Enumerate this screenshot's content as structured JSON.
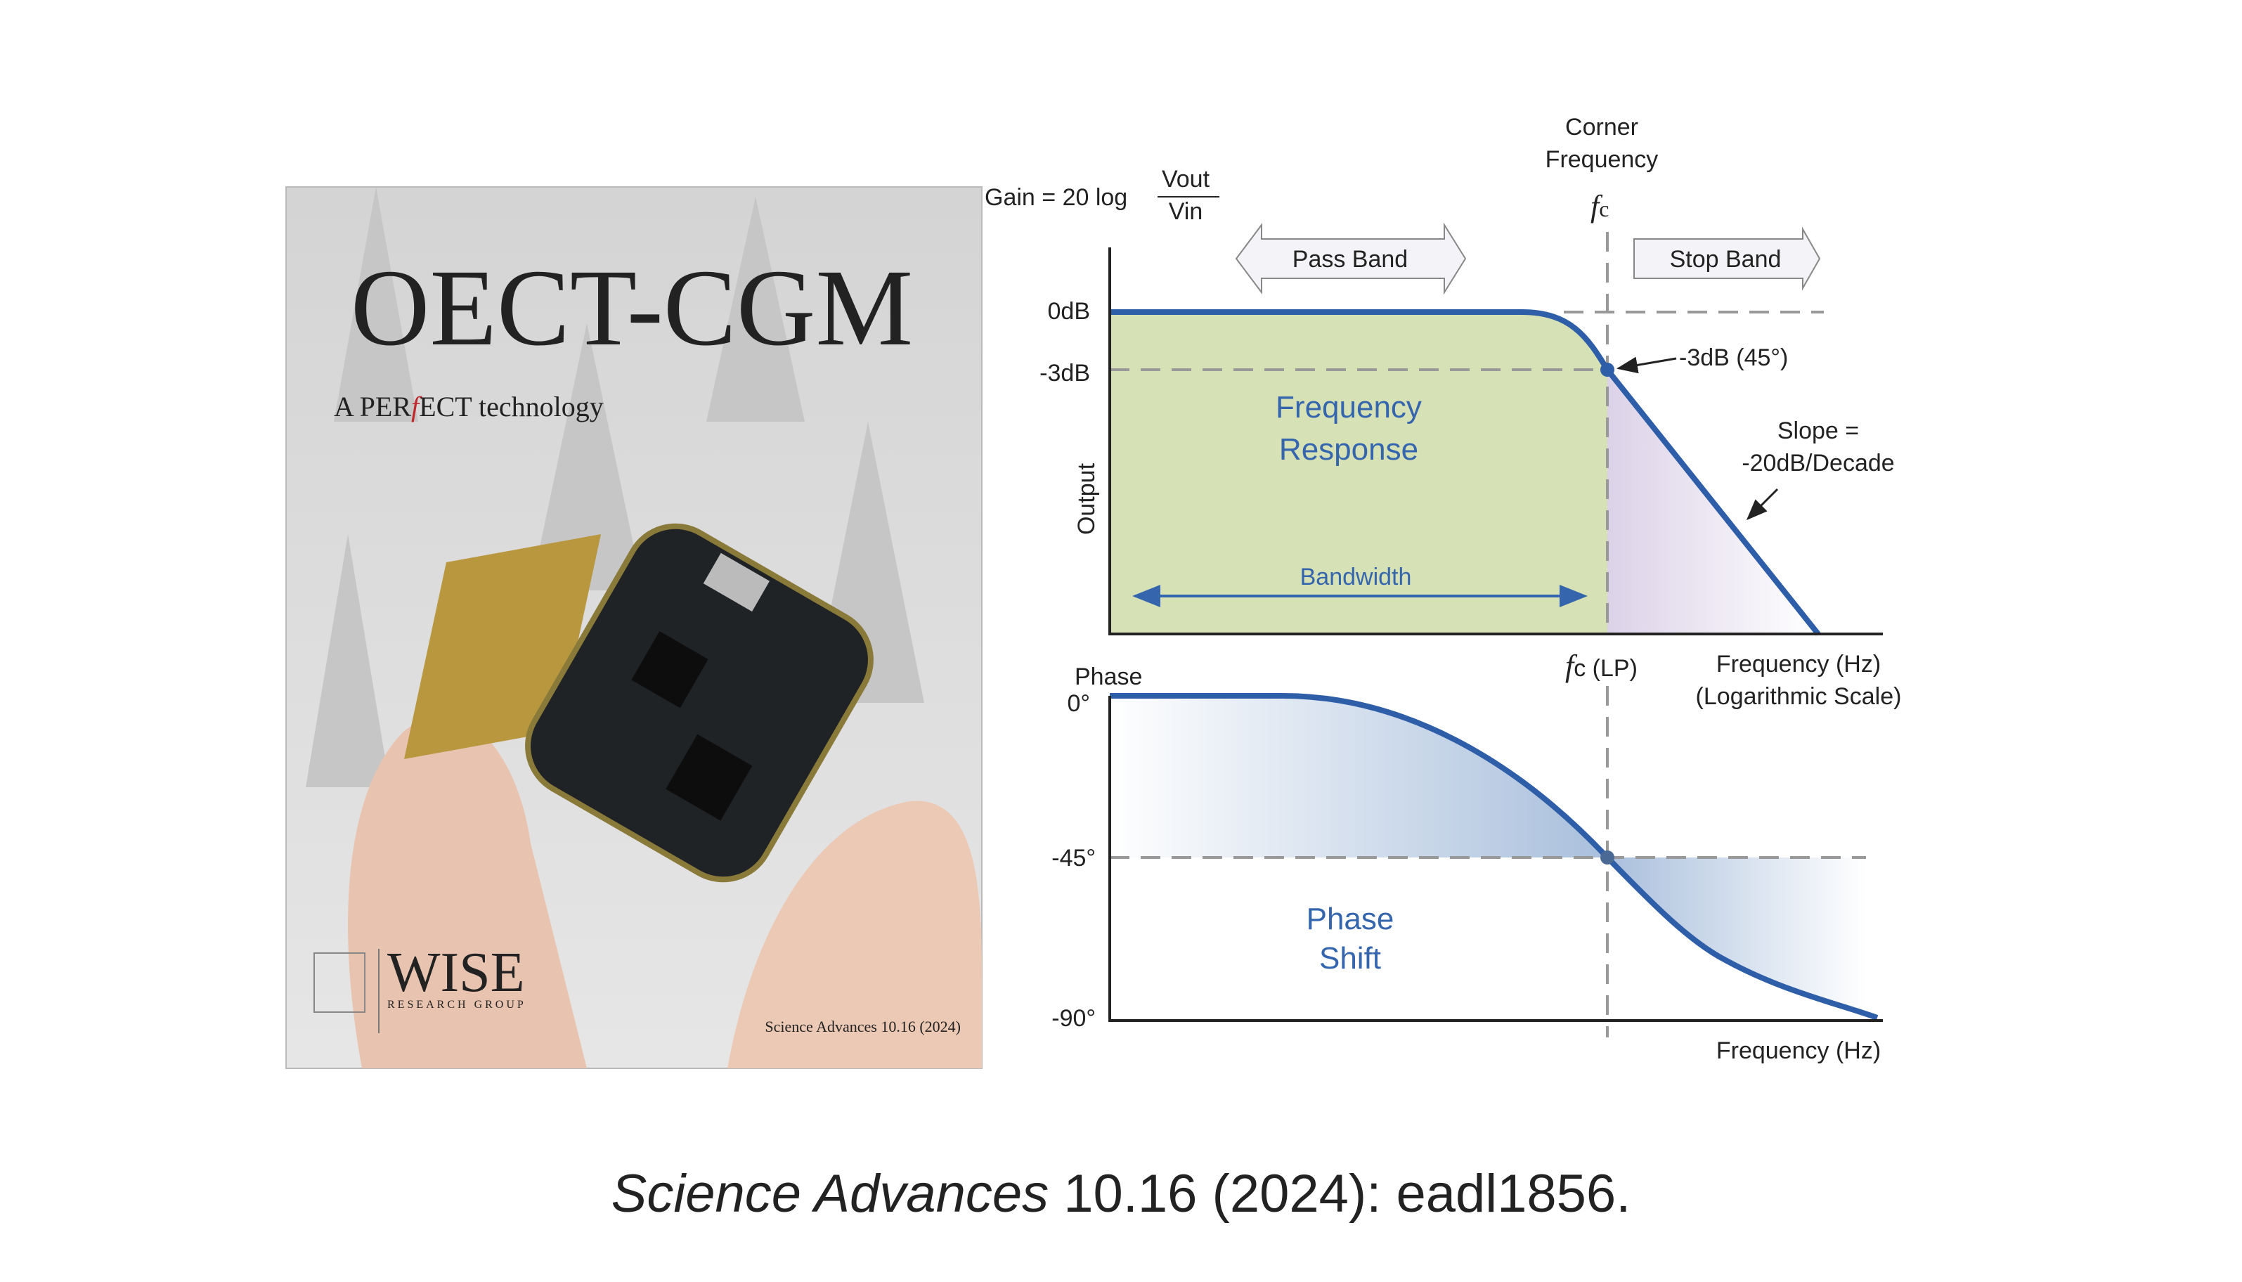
{
  "cover": {
    "title": "OECT-CGM",
    "subtitle_before": "A PER",
    "subtitle_f": "f",
    "subtitle_after": "ECT technology",
    "logo": "WISE",
    "logo_sub": "RESEARCH GROUP",
    "footer": "Science Advances 10.16 (2024)"
  },
  "diagram": {
    "gain_label": "Gain = 20 log",
    "gain_num": "Vout",
    "gain_den": "Vin",
    "corner_lines": [
      "Corner",
      "Frequency"
    ],
    "fc_symbol": "f",
    "fc_sub": "c",
    "pass_band": "Pass Band",
    "stop_band": "Stop Band",
    "zero_db": "0dB",
    "minus3_db": "-3dB",
    "minus3_note": "-3dB (45°)",
    "response_lines": [
      "Frequency",
      "Response"
    ],
    "slope_lines": [
      "Slope =",
      "-20dB/Decade"
    ],
    "output": "Output",
    "bandwidth": "Bandwidth",
    "fc_lp": "c (LP)",
    "freq_log_lines": [
      "Frequency (Hz)",
      "(Logarithmic Scale)"
    ],
    "phase": "Phase",
    "deg0": "0°",
    "deg45": "-45°",
    "deg90": "-90°",
    "phase_shift_lines": [
      "Phase",
      "Shift"
    ],
    "freq_bottom": "Frequency (Hz)"
  },
  "caption": {
    "journal": "Science Advances",
    "rest": " 10.16 (2024): eadl1856."
  }
}
